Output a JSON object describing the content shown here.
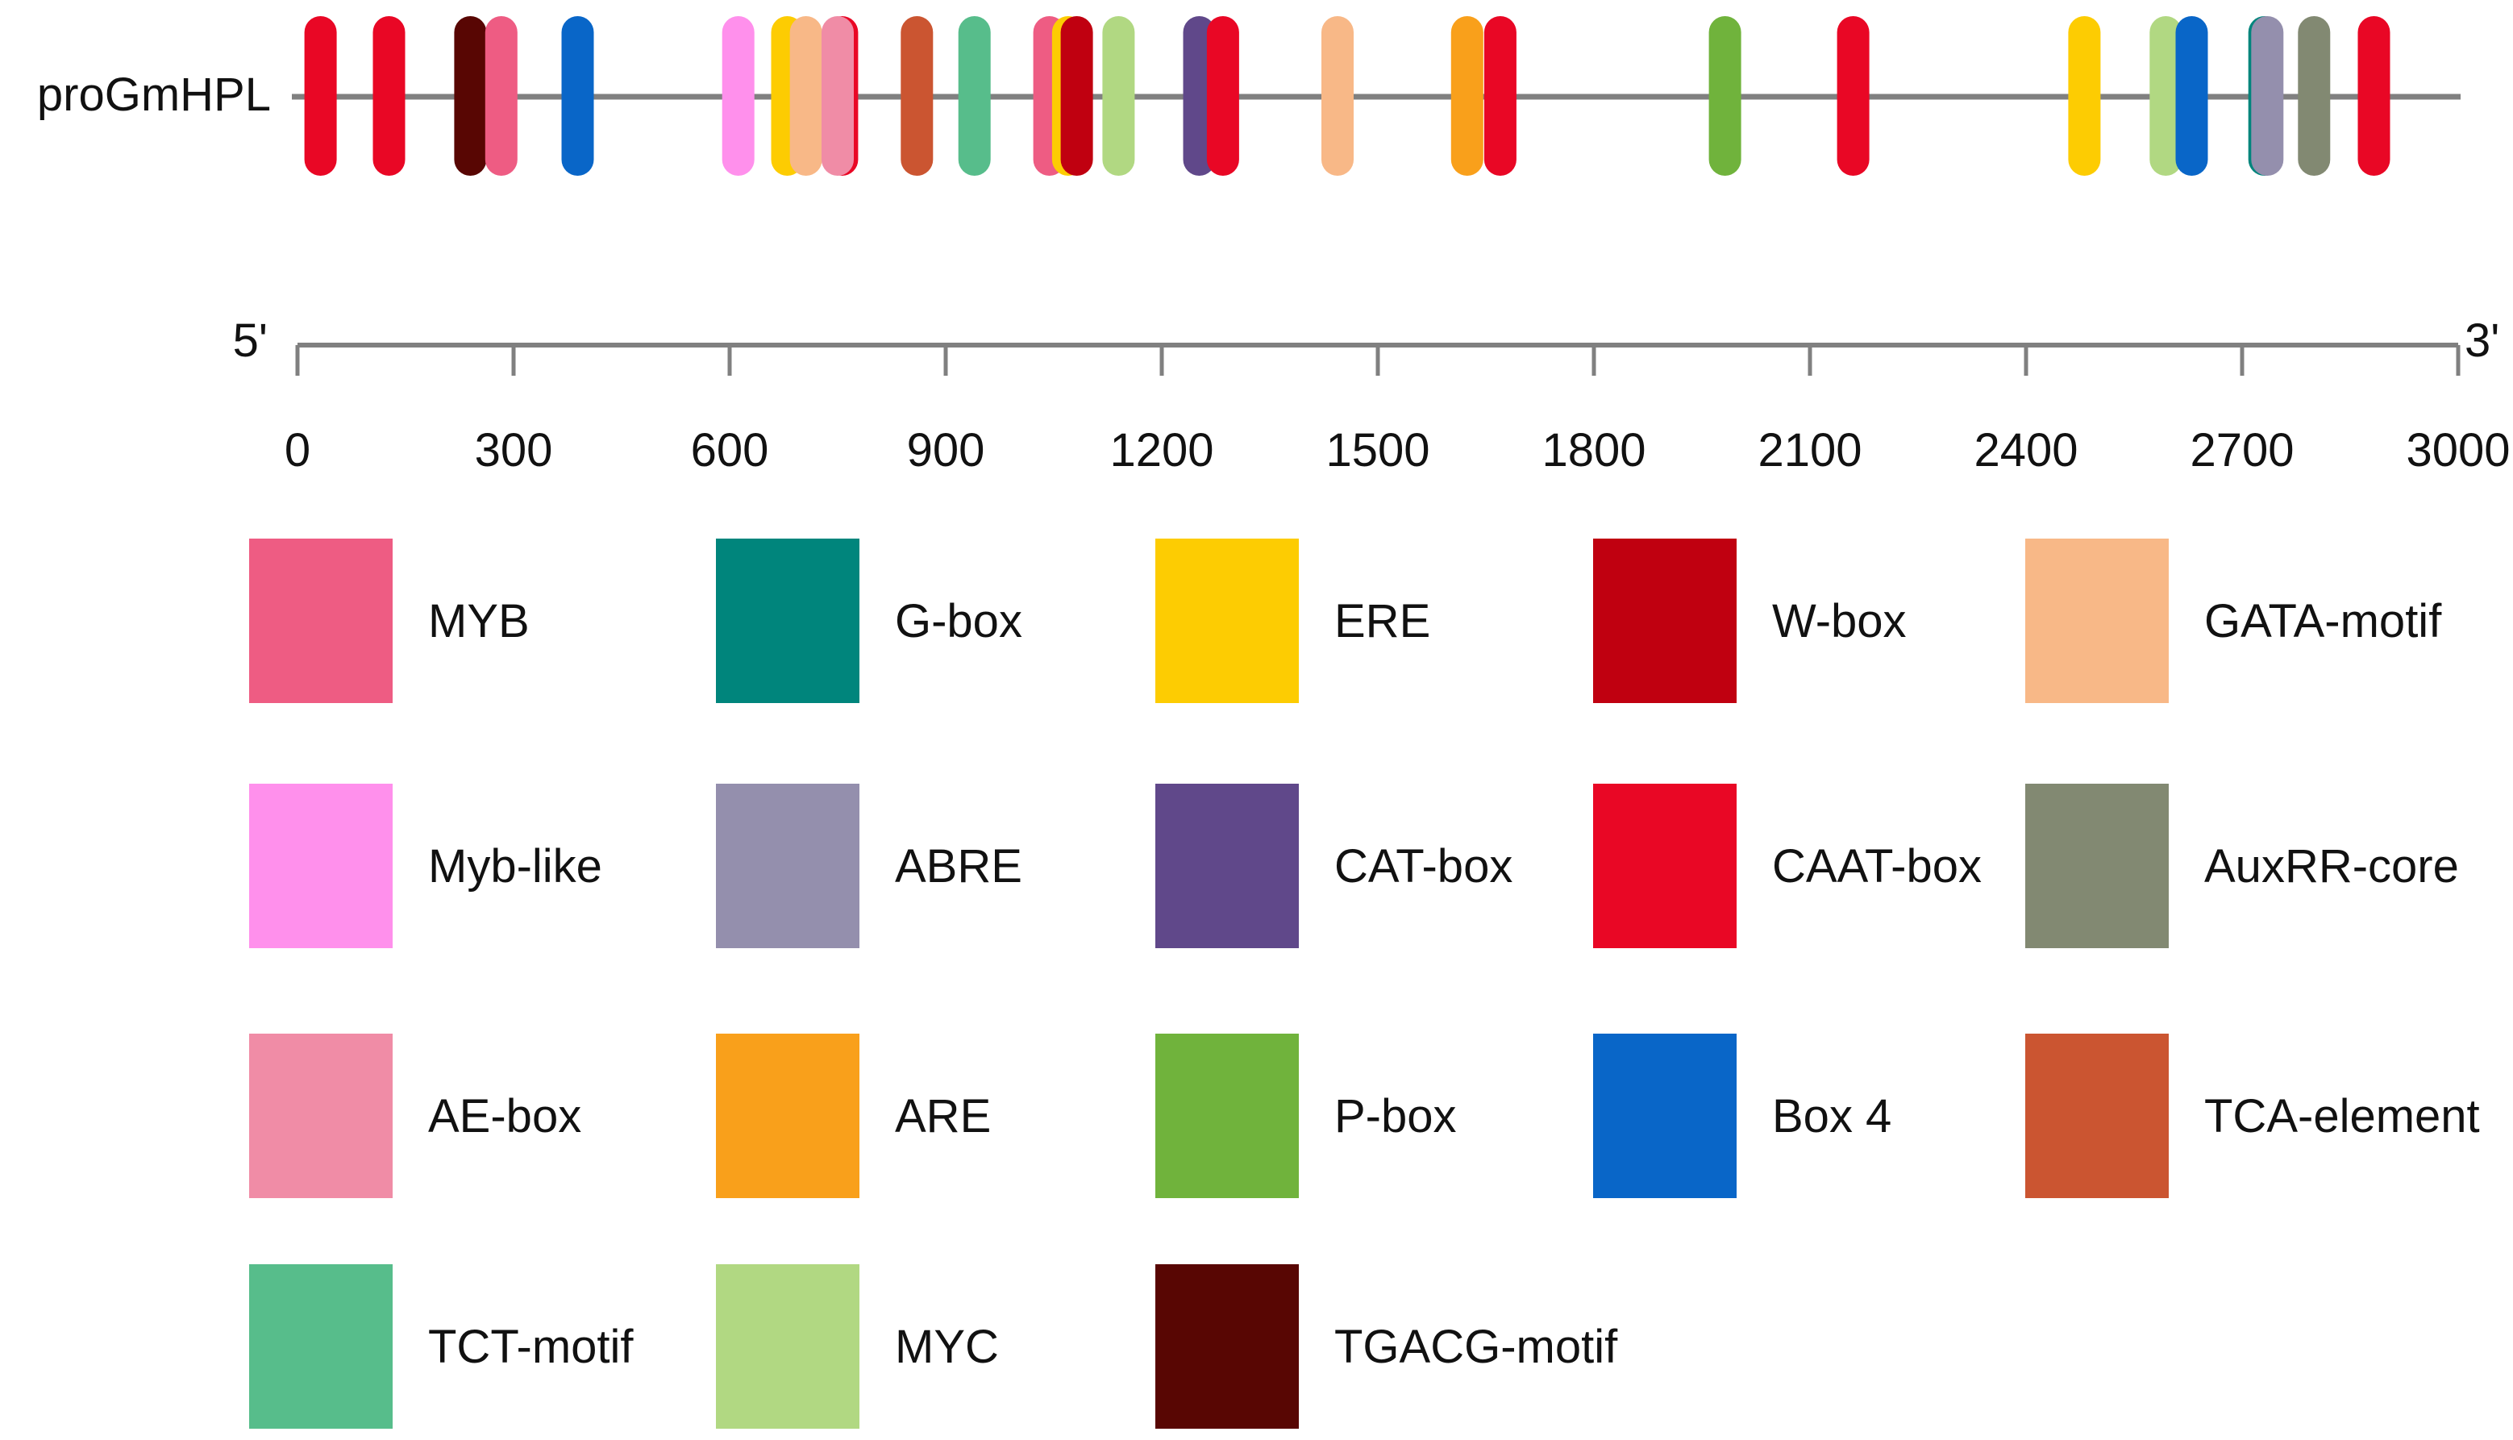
{
  "sequence": {
    "name": "proGmHPL",
    "length": 3000
  },
  "scale": {
    "left_label": "5'",
    "right_label": "3'",
    "ticks": [
      "0",
      "300",
      "600",
      "900",
      "1200",
      "1500",
      "1800",
      "2100",
      "2400",
      "2700",
      "3000"
    ]
  },
  "elements": [
    {
      "name": "MYB",
      "color": "#EE5C83"
    },
    {
      "name": "G-box",
      "color": "#00857C"
    },
    {
      "name": "ERE",
      "color": "#FDCC02"
    },
    {
      "name": "W-box",
      "color": "#C00010"
    },
    {
      "name": "GATA-motif",
      "color": "#F8B887"
    },
    {
      "name": "Myb-like",
      "color": "#FF90EC"
    },
    {
      "name": "ABRE",
      "color": "#948FAD"
    },
    {
      "name": "CAT-box",
      "color": "#60488A"
    },
    {
      "name": "CAAT-box",
      "color": "#E90725"
    },
    {
      "name": "AuxRR-core",
      "color": "#828972"
    },
    {
      "name": "AE-box",
      "color": "#F08CA6"
    },
    {
      "name": "ARE",
      "color": "#F9A01B"
    },
    {
      "name": "P-box",
      "color": "#70B33C"
    },
    {
      "name": "Box 4",
      "color": "#0966C8"
    },
    {
      "name": "TCA-element",
      "color": "#CB5531"
    },
    {
      "name": "TCT-motif",
      "color": "#57BD8B"
    },
    {
      "name": "MYC",
      "color": "#B1D882"
    },
    {
      "name": "TGACG-motif",
      "color": "#580603"
    }
  ],
  "sites": [
    {
      "element": "CAAT-box",
      "position": 32
    },
    {
      "element": "CAAT-box",
      "position": 127
    },
    {
      "element": "TGACG-motif",
      "position": 240
    },
    {
      "element": "MYB",
      "position": 283
    },
    {
      "element": "Box 4",
      "position": 389
    },
    {
      "element": "Myb-like",
      "position": 612
    },
    {
      "element": "ERE",
      "position": 680
    },
    {
      "element": "GATA-motif",
      "position": 706
    },
    {
      "element": "CAAT-box",
      "position": 756
    },
    {
      "element": "AE-box",
      "position": 750
    },
    {
      "element": "TCA-element",
      "position": 860
    },
    {
      "element": "TCT-motif",
      "position": 940
    },
    {
      "element": "MYB",
      "position": 1044
    },
    {
      "element": "ERE",
      "position": 1070
    },
    {
      "element": "W-box",
      "position": 1082
    },
    {
      "element": "MYC",
      "position": 1140
    },
    {
      "element": "CAT-box",
      "position": 1252
    },
    {
      "element": "CAAT-box",
      "position": 1285
    },
    {
      "element": "GATA-motif",
      "position": 1444
    },
    {
      "element": "ARE",
      "position": 1624
    },
    {
      "element": "CAAT-box",
      "position": 1670
    },
    {
      "element": "P-box",
      "position": 1982
    },
    {
      "element": "CAAT-box",
      "position": 2160
    },
    {
      "element": "ERE",
      "position": 2481
    },
    {
      "element": "MYC",
      "position": 2594
    },
    {
      "element": "Box 4",
      "position": 2630
    },
    {
      "element": "G-box",
      "position": 2731
    },
    {
      "element": "ABRE",
      "position": 2735
    },
    {
      "element": "AuxRR-core",
      "position": 2800
    },
    {
      "element": "CAAT-box",
      "position": 2883
    }
  ]
}
